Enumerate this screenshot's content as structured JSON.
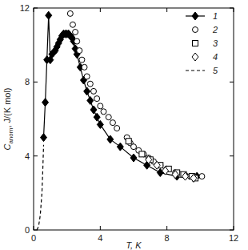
{
  "chart_data": {
    "type": "scatter",
    "xlabel": "T, K",
    "ylabel": [
      "C",
      "anom",
      ", J/(K mol)"
    ],
    "xlim": [
      0,
      12
    ],
    "ylim": [
      0,
      12
    ],
    "xticks": [
      0,
      4,
      8,
      12
    ],
    "yticks": [
      0,
      4,
      8,
      12
    ],
    "grid": false,
    "legend": "upper right",
    "series": [
      {
        "name": "1",
        "color": "#000000",
        "marker": "diamond-filled",
        "line_style": "solid",
        "x": [
          0.6,
          0.7,
          0.8,
          0.9,
          1.0,
          1.1,
          1.2,
          1.3,
          1.4,
          1.5,
          1.6,
          1.7,
          1.8,
          1.9,
          2.0,
          2.1,
          2.2,
          2.3,
          2.4,
          2.5,
          2.6,
          2.8,
          3.0,
          3.2,
          3.4,
          3.6,
          3.8,
          4.0,
          4.6,
          5.2,
          6.0,
          6.8,
          7.6,
          8.6,
          9.8
        ],
        "values": [
          5.0,
          6.9,
          9.2,
          11.6,
          9.2,
          9.5,
          9.6,
          9.7,
          9.9,
          10.1,
          10.3,
          10.5,
          10.6,
          10.6,
          10.6,
          10.6,
          10.5,
          10.4,
          10.2,
          9.8,
          9.5,
          8.8,
          8.1,
          7.5,
          7.0,
          6.5,
          6.1,
          5.7,
          4.9,
          4.5,
          3.9,
          3.5,
          3.1,
          2.9,
          2.9
        ]
      },
      {
        "name": "2",
        "color": "#000000",
        "marker": "circle",
        "line_style": "none",
        "x": [
          2.2,
          2.35,
          2.5,
          2.6,
          2.75,
          2.9,
          3.05,
          3.2,
          3.4,
          3.6,
          3.8,
          4.0,
          4.2,
          4.5,
          4.75,
          5.0,
          5.6,
          5.8,
          6.0,
          6.3,
          6.6,
          6.9,
          7.2,
          7.6,
          8.0,
          8.5,
          8.8,
          9.1,
          9.4,
          9.7,
          10.1
        ],
        "values": [
          11.7,
          11.1,
          10.7,
          10.2,
          9.7,
          9.2,
          8.8,
          8.3,
          7.9,
          7.5,
          7.1,
          6.7,
          6.4,
          6.1,
          5.8,
          5.5,
          5.0,
          4.7,
          4.5,
          4.3,
          4.1,
          3.9,
          3.7,
          3.5,
          3.3,
          3.1,
          3.0,
          2.95,
          2.9,
          2.85,
          2.9
        ]
      },
      {
        "name": "3",
        "color": "#000000",
        "marker": "square",
        "line_style": "none",
        "x": [
          5.7,
          6.5,
          7.0,
          7.6,
          8.1,
          8.6,
          9.0,
          9.5,
          9.7
        ],
        "values": [
          4.8,
          4.1,
          3.8,
          3.5,
          3.3,
          3.1,
          3.0,
          2.9,
          2.8
        ]
      },
      {
        "name": "4",
        "color": "#000000",
        "marker": "diamond",
        "line_style": "none",
        "x": [
          6.9,
          7.4,
          7.9,
          8.5,
          9.1,
          9.6
        ],
        "values": [
          3.8,
          3.5,
          3.2,
          3.0,
          2.9,
          2.8
        ]
      },
      {
        "name": "5",
        "color": "#000000",
        "marker": "none",
        "line_style": "dashed",
        "x": [
          0.2,
          0.3,
          0.4,
          0.5,
          0.55,
          0.6
        ],
        "values": [
          0.0,
          0.2,
          0.8,
          2.0,
          3.2,
          4.6
        ]
      }
    ]
  }
}
